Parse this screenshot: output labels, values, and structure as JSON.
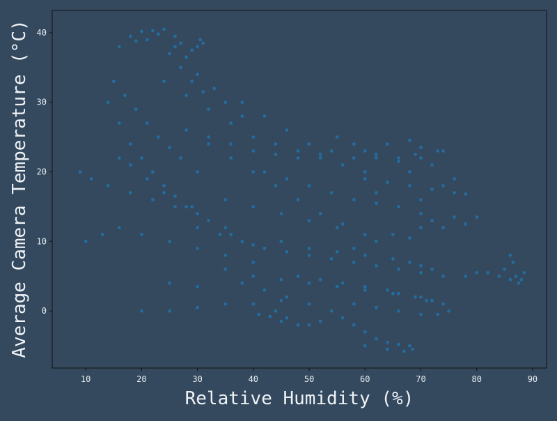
{
  "chart_data": {
    "type": "scatter",
    "title": "",
    "xlabel": "Relative Humidity (%)",
    "ylabel": "Average Camera Temperature (°C)",
    "xlim": [
      4,
      92.5
    ],
    "ylim": [
      -8.2,
      43.2
    ],
    "xticks": [
      "10",
      "20",
      "30",
      "40",
      "50",
      "60",
      "70",
      "80",
      "90"
    ],
    "yticks": [
      "0",
      "10",
      "20",
      "30",
      "40"
    ],
    "grid": false,
    "legend": "none",
    "point_color": "#1f77b4",
    "background_color": "#34495e",
    "plot_area_color": "#34495e",
    "series": [
      {
        "name": "",
        "points": [
          [
            16,
            38
          ],
          [
            18,
            39.5
          ],
          [
            20,
            40.2
          ],
          [
            22,
            40.3
          ],
          [
            24,
            40.5
          ],
          [
            26,
            38
          ],
          [
            28,
            36.5
          ],
          [
            30,
            34
          ],
          [
            21,
            39
          ],
          [
            25,
            37
          ],
          [
            27,
            35
          ],
          [
            29,
            33
          ],
          [
            31,
            31.5
          ],
          [
            33,
            32
          ],
          [
            35,
            30
          ],
          [
            38,
            28
          ],
          [
            15,
            33
          ],
          [
            17,
            31
          ],
          [
            19,
            29
          ],
          [
            21,
            27
          ],
          [
            23,
            25
          ],
          [
            25,
            23.5
          ],
          [
            27,
            22
          ],
          [
            30,
            20
          ],
          [
            14,
            30
          ],
          [
            16,
            27
          ],
          [
            18,
            24
          ],
          [
            20,
            22
          ],
          [
            22,
            20
          ],
          [
            24,
            18
          ],
          [
            26,
            16.5
          ],
          [
            29,
            15
          ],
          [
            16,
            22
          ],
          [
            18,
            21
          ],
          [
            21,
            19
          ],
          [
            24,
            17
          ],
          [
            28,
            15
          ],
          [
            32,
            13
          ],
          [
            36,
            11
          ],
          [
            40,
            9.5
          ],
          [
            9,
            20
          ],
          [
            11,
            19
          ],
          [
            14,
            18
          ],
          [
            18,
            17
          ],
          [
            22,
            16
          ],
          [
            26,
            15
          ],
          [
            30,
            14
          ],
          [
            35,
            12
          ],
          [
            10,
            10
          ],
          [
            13,
            11
          ],
          [
            16,
            12
          ],
          [
            20,
            11
          ],
          [
            25,
            10
          ],
          [
            30,
            9
          ],
          [
            35,
            8
          ],
          [
            40,
            7
          ],
          [
            32,
            25
          ],
          [
            36,
            24
          ],
          [
            40,
            23
          ],
          [
            44,
            22.5
          ],
          [
            48,
            22
          ],
          [
            52,
            22
          ],
          [
            56,
            21
          ],
          [
            60,
            20
          ],
          [
            38,
            30
          ],
          [
            42,
            28
          ],
          [
            46,
            26
          ],
          [
            50,
            24
          ],
          [
            54,
            23
          ],
          [
            58,
            22
          ],
          [
            62,
            22.5
          ],
          [
            66,
            22
          ],
          [
            42,
            20
          ],
          [
            46,
            19
          ],
          [
            50,
            18
          ],
          [
            54,
            17
          ],
          [
            58,
            16
          ],
          [
            62,
            15.5
          ],
          [
            66,
            15
          ],
          [
            70,
            14
          ],
          [
            60,
            19
          ],
          [
            64,
            18.5
          ],
          [
            68,
            18
          ],
          [
            72,
            17.5
          ],
          [
            76,
            17
          ],
          [
            78,
            16.8
          ],
          [
            62,
            17
          ],
          [
            70,
            16
          ],
          [
            62,
            22
          ],
          [
            66,
            21.5
          ],
          [
            70,
            22
          ],
          [
            74,
            23
          ],
          [
            72,
            21
          ],
          [
            76,
            19
          ],
          [
            74,
            18
          ],
          [
            68,
            20
          ],
          [
            35,
            16
          ],
          [
            40,
            15
          ],
          [
            45,
            14
          ],
          [
            50,
            13
          ],
          [
            55,
            12
          ],
          [
            60,
            11
          ],
          [
            65,
            11
          ],
          [
            70,
            12
          ],
          [
            72,
            13
          ],
          [
            76,
            13.5
          ],
          [
            80,
            13.5
          ],
          [
            78,
            12.5
          ],
          [
            74,
            12
          ],
          [
            68,
            10.5
          ],
          [
            62,
            10
          ],
          [
            58,
            9
          ],
          [
            30,
            12
          ],
          [
            34,
            11
          ],
          [
            38,
            10
          ],
          [
            42,
            9
          ],
          [
            46,
            8.5
          ],
          [
            50,
            8
          ],
          [
            54,
            7.5
          ],
          [
            58,
            7
          ],
          [
            62,
            6.5
          ],
          [
            66,
            6
          ],
          [
            70,
            5.5
          ],
          [
            74,
            5
          ],
          [
            78,
            5
          ],
          [
            82,
            5.5
          ],
          [
            85,
            6
          ],
          [
            86.5,
            7
          ],
          [
            86,
            8
          ],
          [
            87,
            5
          ],
          [
            88,
            4.5
          ],
          [
            88.5,
            5.5
          ],
          [
            87.5,
            4
          ],
          [
            86,
            4.5
          ],
          [
            84,
            5
          ],
          [
            80,
            5.5
          ],
          [
            35,
            6
          ],
          [
            40,
            5
          ],
          [
            45,
            4.5
          ],
          [
            50,
            4
          ],
          [
            55,
            3.5
          ],
          [
            60,
            3
          ],
          [
            65,
            2.5
          ],
          [
            70,
            2
          ],
          [
            72,
            1.5
          ],
          [
            74,
            1
          ],
          [
            75,
            0
          ],
          [
            73,
            -0.5
          ],
          [
            70,
            -0.5
          ],
          [
            66,
            0
          ],
          [
            62,
            0.5
          ],
          [
            58,
            1
          ],
          [
            38,
            4
          ],
          [
            42,
            3
          ],
          [
            46,
            2
          ],
          [
            50,
            1
          ],
          [
            54,
            0
          ],
          [
            56,
            -1
          ],
          [
            58,
            -2
          ],
          [
            60,
            -3
          ],
          [
            62,
            -4
          ],
          [
            64,
            -4.5
          ],
          [
            66,
            -4.8
          ],
          [
            68,
            -5
          ],
          [
            68.5,
            -5.5
          ],
          [
            67,
            -5.8
          ],
          [
            64,
            -5.5
          ],
          [
            60,
            -5
          ],
          [
            44,
            0
          ],
          [
            46,
            -1
          ],
          [
            48,
            -2
          ],
          [
            50,
            -2
          ],
          [
            52,
            -1.5
          ],
          [
            45,
            -1.5
          ],
          [
            43,
            -0.8
          ],
          [
            41,
            -0.5
          ],
          [
            20,
            0
          ],
          [
            25,
            0
          ],
          [
            30,
            0.5
          ],
          [
            35,
            1
          ],
          [
            40,
            1
          ],
          [
            45,
            1.5
          ],
          [
            25,
            4
          ],
          [
            30,
            3.5
          ],
          [
            55,
            25
          ],
          [
            58,
            24
          ],
          [
            60,
            23
          ],
          [
            64,
            24
          ],
          [
            68,
            24.5
          ],
          [
            70,
            23.5
          ],
          [
            73,
            23
          ],
          [
            69,
            22.5
          ],
          [
            45,
            10
          ],
          [
            50,
            9
          ],
          [
            55,
            8.5
          ],
          [
            60,
            8
          ],
          [
            65,
            7.5
          ],
          [
            68,
            7
          ],
          [
            70,
            6.5
          ],
          [
            72,
            6
          ],
          [
            48,
            5
          ],
          [
            52,
            4.5
          ],
          [
            56,
            4
          ],
          [
            60,
            3.5
          ],
          [
            64,
            3
          ],
          [
            66,
            2.5
          ],
          [
            69,
            2
          ],
          [
            71,
            1.5
          ],
          [
            28,
            26
          ],
          [
            32,
            24
          ],
          [
            36,
            22
          ],
          [
            40,
            20
          ],
          [
            44,
            18
          ],
          [
            48,
            16
          ],
          [
            52,
            14
          ],
          [
            56,
            12.5
          ],
          [
            24,
            33
          ],
          [
            28,
            31
          ],
          [
            32,
            29
          ],
          [
            36,
            27
          ],
          [
            40,
            25
          ],
          [
            44,
            24
          ],
          [
            48,
            23
          ],
          [
            52,
            22.5
          ],
          [
            30,
            38
          ],
          [
            30.5,
            39
          ],
          [
            31,
            38.5
          ],
          [
            29,
            37.5
          ],
          [
            27,
            38.5
          ],
          [
            26,
            39.5
          ],
          [
            23,
            39.8
          ],
          [
            19,
            38.8
          ]
        ]
      }
    ]
  }
}
